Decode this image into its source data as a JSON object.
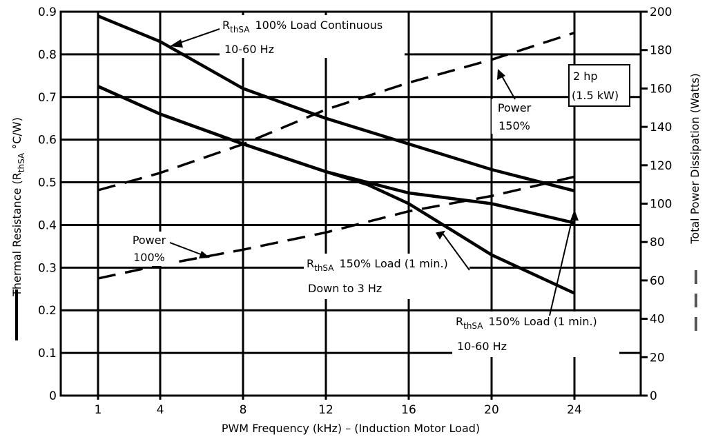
{
  "chart_data": {
    "type": "line",
    "title": "",
    "xlabel": "PWM Frequency (kHz) – (Induction Motor Load)",
    "ylabel_left": "Thermal Resistance (RthSA °C/W)",
    "ylabel_right": "Total Power Dissipation (Watts)",
    "x_range": [
      -0.8,
      27.2
    ],
    "x_ticks": [
      1,
      4,
      8,
      12,
      16,
      20,
      24
    ],
    "y_left_range": [
      0,
      0.9
    ],
    "y_left_ticks": [
      0,
      0.1,
      0.2,
      0.3,
      0.4,
      0.5,
      0.6,
      0.7,
      0.8,
      0.9
    ],
    "y_right_range": [
      0,
      200
    ],
    "y_right_ticks": [
      0,
      20,
      40,
      60,
      80,
      100,
      120,
      140,
      160,
      180,
      200
    ],
    "grid": true,
    "series": [
      {
        "name": "RthSA 100% Load Continuous 10-60 Hz",
        "axis": "left",
        "style": "solid",
        "x": [
          1,
          4,
          8,
          12,
          16,
          20,
          24
        ],
        "y": [
          0.89,
          0.83,
          0.72,
          0.65,
          0.59,
          0.53,
          0.48
        ]
      },
      {
        "name": "RthSA 150% Load (1 min.) 10-60 Hz",
        "axis": "left",
        "style": "solid",
        "x": [
          1,
          4,
          8,
          12,
          16,
          20,
          24
        ],
        "y": [
          0.725,
          0.66,
          0.59,
          0.525,
          0.475,
          0.45,
          0.405
        ]
      },
      {
        "name": "RthSA 150% Load (1 min.) Down to 3 Hz",
        "axis": "left",
        "style": "solid",
        "x": [
          1,
          4,
          8,
          12,
          14,
          16,
          18,
          20,
          24
        ],
        "y": [
          0.725,
          0.66,
          0.59,
          0.525,
          0.495,
          0.45,
          0.39,
          0.33,
          0.24
        ]
      },
      {
        "name": "Power 150%",
        "axis": "right",
        "style": "dashed",
        "x": [
          1,
          4,
          8,
          12,
          16,
          20,
          24
        ],
        "y": [
          107,
          116,
          131,
          149,
          163,
          175,
          189
        ]
      },
      {
        "name": "Power 100%",
        "axis": "right",
        "style": "dashed",
        "x": [
          1,
          4,
          8,
          12,
          16,
          20,
          24
        ],
        "y": [
          61,
          68,
          76,
          85,
          96,
          104,
          114
        ]
      }
    ],
    "annotations": {
      "a100": {
        "r": "R",
        "sub": "thSA",
        "line1": "100% Load Continuous",
        "line2": "10-60 Hz"
      },
      "a150low": {
        "r": "R",
        "sub": "thSA",
        "line1": "150% Load (1 min.)",
        "line2": "Down to 3 Hz"
      },
      "a150": {
        "r": "R",
        "sub": "thSA",
        "line1": "150% Load (1 min.)",
        "line2": "10-60 Hz"
      },
      "p150": {
        "line1": "Power",
        "line2": "150%"
      },
      "p100": {
        "line1": "Power",
        "line2": "100%"
      },
      "box": {
        "line1": "2 hp",
        "line2": "(1.5 kW)"
      }
    },
    "ylabel_left_parts": {
      "pre": "Thermal Resistance (R",
      "sub": "thSA",
      "post": " °C/W)"
    }
  }
}
